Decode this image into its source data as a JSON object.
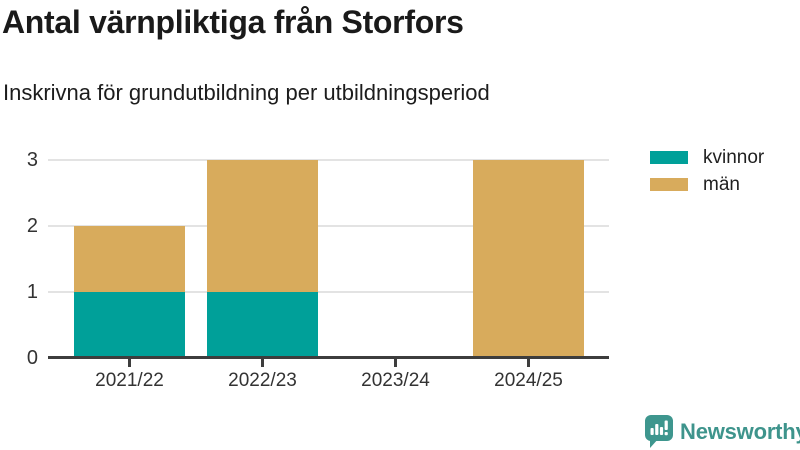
{
  "header": {
    "title": "Antal värnpliktiga från Storfors",
    "subtitle": "Inskrivna för grundutbildning per utbildningsperiod"
  },
  "chart_data": {
    "type": "bar",
    "stacked": true,
    "title": "Antal värnpliktiga från Storfors",
    "subtitle": "Inskrivna för grundutbildning per utbildningsperiod",
    "categories": [
      "2021/22",
      "2022/23",
      "2023/24",
      "2024/25"
    ],
    "series": [
      {
        "name": "kvinnor",
        "color": "#00A099",
        "values": [
          1,
          1,
          0,
          0
        ]
      },
      {
        "name": "män",
        "color": "#D8AB5C",
        "values": [
          1,
          2,
          0,
          3
        ]
      }
    ],
    "totals": [
      2,
      3,
      0,
      3
    ],
    "xlabel": "",
    "ylabel": "",
    "ylim": [
      0,
      3
    ],
    "yticks": [
      0,
      1,
      2,
      3
    ],
    "grid": true,
    "gridline_color": "#e3e3e3",
    "axis_line_color": "#3d3d3d",
    "legend_position": "top-right"
  },
  "branding": {
    "label": "Newsworthy",
    "color": "#3E948C",
    "icon_color": "#3E968E"
  }
}
